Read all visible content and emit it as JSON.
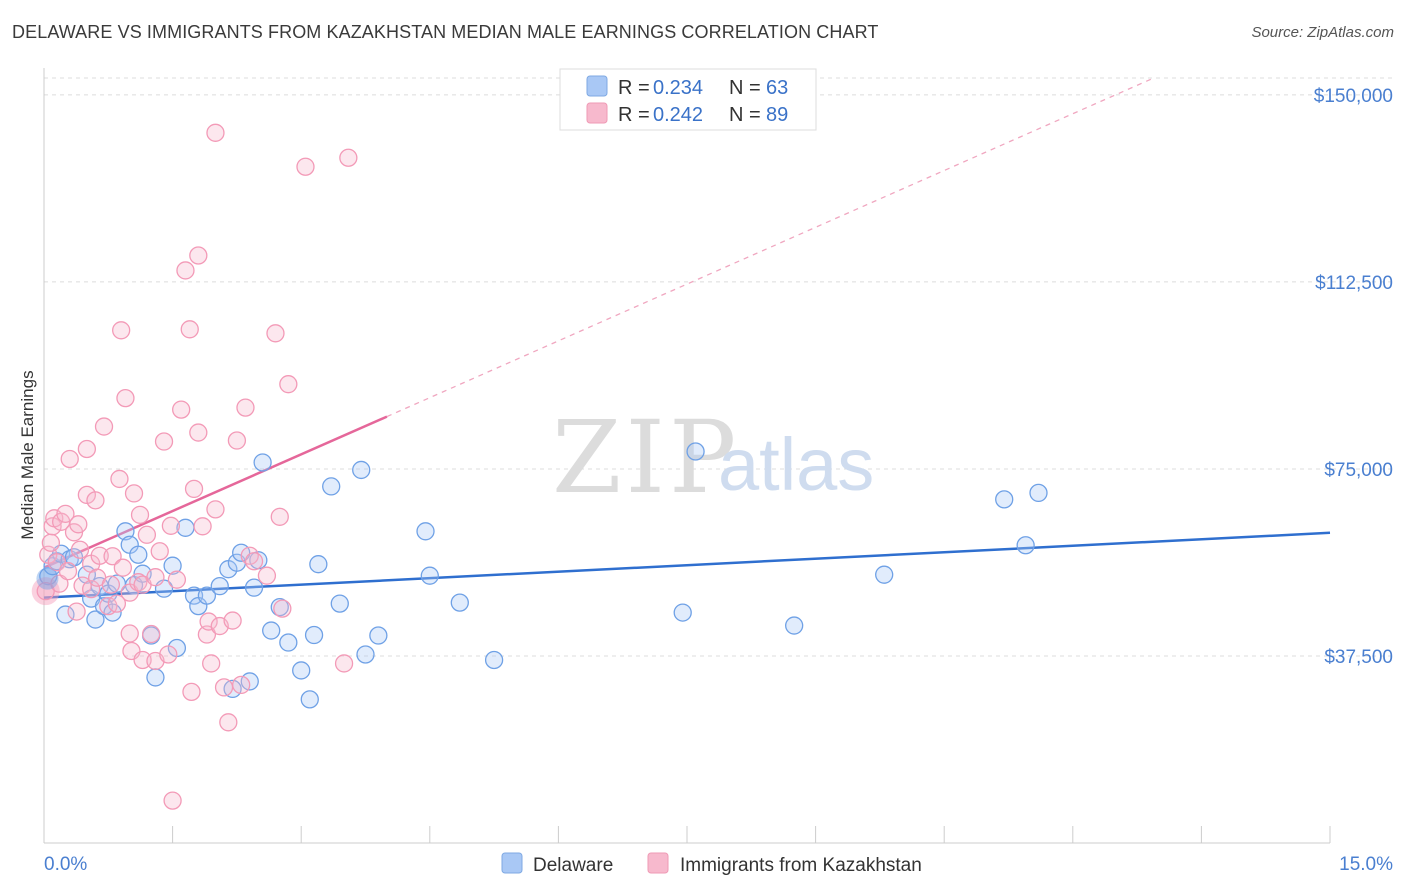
{
  "header": {
    "title": "DELAWARE VS IMMIGRANTS FROM KAZAKHSTAN MEDIAN MALE EARNINGS CORRELATION CHART",
    "source": "Source: ZipAtlas.com"
  },
  "watermark": {
    "part1": "ZIP",
    "part2": "atlas"
  },
  "legend_top": [
    {
      "r_label": "R = ",
      "r_value": "0.234",
      "n_label": "N = ",
      "n_value": "63",
      "color": "#a9c8f5"
    },
    {
      "r_label": "R = ",
      "r_value": "0.242",
      "n_label": "N = ",
      "n_value": "89",
      "color": "#f7b9cd"
    }
  ],
  "legend_bottom": [
    {
      "label": "Delaware",
      "color": "#a9c8f5"
    },
    {
      "label": "Immigrants from Kazakhstan",
      "color": "#f7b9cd"
    }
  ],
  "chart_data": {
    "type": "scatter",
    "title": "DELAWARE VS IMMIGRANTS FROM KAZAKHSTAN MEDIAN MALE EARNINGS CORRELATION CHART",
    "xlabel": "",
    "ylabel": "Median Male Earnings",
    "xlim": [
      0,
      15
    ],
    "ylim": [
      0,
      157000
    ],
    "x_tick_labels": [
      "0.0%",
      "15.0%"
    ],
    "y_ticks": [
      37500,
      75000,
      112500,
      150000
    ],
    "y_tick_labels": [
      "$37,500",
      "$75,000",
      "$112,500",
      "$150,000"
    ],
    "grid": "horizontal dashed",
    "legend_position": "top-center and bottom",
    "series": [
      {
        "name": "Delaware",
        "color": "#6fa1e6",
        "trend": {
          "x": [
            0,
            15
          ],
          "y": [
            49200,
            62200
          ],
          "color": "#2f6fcf"
        },
        "points": [
          [
            0.05,
            53500
          ],
          [
            0.1,
            55500
          ],
          [
            0.15,
            56500
          ],
          [
            0.2,
            58000
          ],
          [
            0.25,
            45800
          ],
          [
            0.3,
            56900
          ],
          [
            0.35,
            57300
          ],
          [
            0.5,
            53800
          ],
          [
            0.55,
            49000
          ],
          [
            0.6,
            44800
          ],
          [
            0.65,
            51500
          ],
          [
            0.7,
            47500
          ],
          [
            0.75,
            50000
          ],
          [
            0.8,
            46200
          ],
          [
            0.85,
            52000
          ],
          [
            0.95,
            62500
          ],
          [
            1.0,
            59800
          ],
          [
            1.05,
            51700
          ],
          [
            1.1,
            57800
          ],
          [
            1.15,
            54000
          ],
          [
            1.25,
            41600
          ],
          [
            1.3,
            33200
          ],
          [
            1.4,
            51000
          ],
          [
            1.5,
            55600
          ],
          [
            1.55,
            39100
          ],
          [
            1.65,
            63200
          ],
          [
            1.75,
            49600
          ],
          [
            1.8,
            47500
          ],
          [
            1.9,
            49600
          ],
          [
            2.05,
            51500
          ],
          [
            2.15,
            54900
          ],
          [
            2.2,
            30900
          ],
          [
            2.25,
            56200
          ],
          [
            2.3,
            58200
          ],
          [
            2.4,
            32400
          ],
          [
            2.45,
            51200
          ],
          [
            2.5,
            56700
          ],
          [
            2.55,
            76300
          ],
          [
            2.65,
            42600
          ],
          [
            2.75,
            47300
          ],
          [
            2.85,
            40200
          ],
          [
            3.0,
            34600
          ],
          [
            3.1,
            28800
          ],
          [
            3.15,
            41700
          ],
          [
            3.2,
            55900
          ],
          [
            3.35,
            71500
          ],
          [
            3.45,
            48000
          ],
          [
            3.7,
            74800
          ],
          [
            3.75,
            37800
          ],
          [
            3.9,
            41600
          ],
          [
            4.45,
            62500
          ],
          [
            4.5,
            53600
          ],
          [
            4.85,
            48200
          ],
          [
            5.25,
            36700
          ],
          [
            7.45,
            46200
          ],
          [
            7.6,
            78500
          ],
          [
            8.75,
            43600
          ],
          [
            9.8,
            53800
          ],
          [
            11.2,
            68900
          ],
          [
            11.45,
            59700
          ],
          [
            11.6,
            70200
          ]
        ]
      },
      {
        "name": "Immigrants from Kazakhstan",
        "color": "#f39ab7",
        "trend": {
          "x": [
            0,
            4.0
          ],
          "y": [
            55200,
            85500
          ],
          "color": "#e5679a",
          "extension_x": [
            4.0,
            15
          ],
          "extension_y": [
            85500,
            169000
          ]
        },
        "points": [
          [
            0.02,
            50500
          ],
          [
            0.05,
            57800
          ],
          [
            0.08,
            60200
          ],
          [
            0.1,
            63500
          ],
          [
            0.12,
            65100
          ],
          [
            0.15,
            56300
          ],
          [
            0.18,
            52000
          ],
          [
            0.2,
            64400
          ],
          [
            0.25,
            66000
          ],
          [
            0.28,
            54500
          ],
          [
            0.3,
            77000
          ],
          [
            0.35,
            62300
          ],
          [
            0.38,
            46400
          ],
          [
            0.4,
            63900
          ],
          [
            0.42,
            58800
          ],
          [
            0.45,
            51600
          ],
          [
            0.5,
            69800
          ],
          [
            0.5,
            79000
          ],
          [
            0.55,
            50900
          ],
          [
            0.55,
            56000
          ],
          [
            0.6,
            68700
          ],
          [
            0.62,
            53200
          ],
          [
            0.65,
            57600
          ],
          [
            0.7,
            83500
          ],
          [
            0.75,
            47500
          ],
          [
            0.78,
            51800
          ],
          [
            0.8,
            57500
          ],
          [
            0.85,
            48000
          ],
          [
            0.88,
            73000
          ],
          [
            0.9,
            102800
          ],
          [
            0.92,
            55200
          ],
          [
            0.95,
            89200
          ],
          [
            1.0,
            42000
          ],
          [
            1.0,
            50200
          ],
          [
            1.02,
            38500
          ],
          [
            1.05,
            70100
          ],
          [
            1.1,
            52300
          ],
          [
            1.12,
            65800
          ],
          [
            1.15,
            51800
          ],
          [
            1.15,
            36700
          ],
          [
            1.2,
            61800
          ],
          [
            1.25,
            41900
          ],
          [
            1.3,
            36500
          ],
          [
            1.3,
            53300
          ],
          [
            1.35,
            58500
          ],
          [
            1.4,
            80500
          ],
          [
            1.45,
            37800
          ],
          [
            1.48,
            63600
          ],
          [
            1.5,
            8500
          ],
          [
            1.55,
            52800
          ],
          [
            1.6,
            86900
          ],
          [
            1.65,
            114800
          ],
          [
            1.7,
            103000
          ],
          [
            1.72,
            30300
          ],
          [
            1.75,
            71000
          ],
          [
            1.8,
            117800
          ],
          [
            1.8,
            82300
          ],
          [
            1.85,
            63500
          ],
          [
            1.9,
            41800
          ],
          [
            1.92,
            44400
          ],
          [
            1.95,
            36000
          ],
          [
            2.0,
            142400
          ],
          [
            2.0,
            66900
          ],
          [
            2.05,
            43500
          ],
          [
            2.1,
            31200
          ],
          [
            2.15,
            24200
          ],
          [
            2.2,
            44600
          ],
          [
            2.25,
            80700
          ],
          [
            2.3,
            31700
          ],
          [
            2.35,
            87300
          ],
          [
            2.4,
            57600
          ],
          [
            2.45,
            56500
          ],
          [
            2.6,
            53600
          ],
          [
            2.7,
            102200
          ],
          [
            2.75,
            65400
          ],
          [
            2.78,
            47000
          ],
          [
            2.85,
            92000
          ],
          [
            3.05,
            135600
          ],
          [
            3.5,
            36000
          ],
          [
            3.55,
            137400
          ]
        ]
      }
    ]
  }
}
